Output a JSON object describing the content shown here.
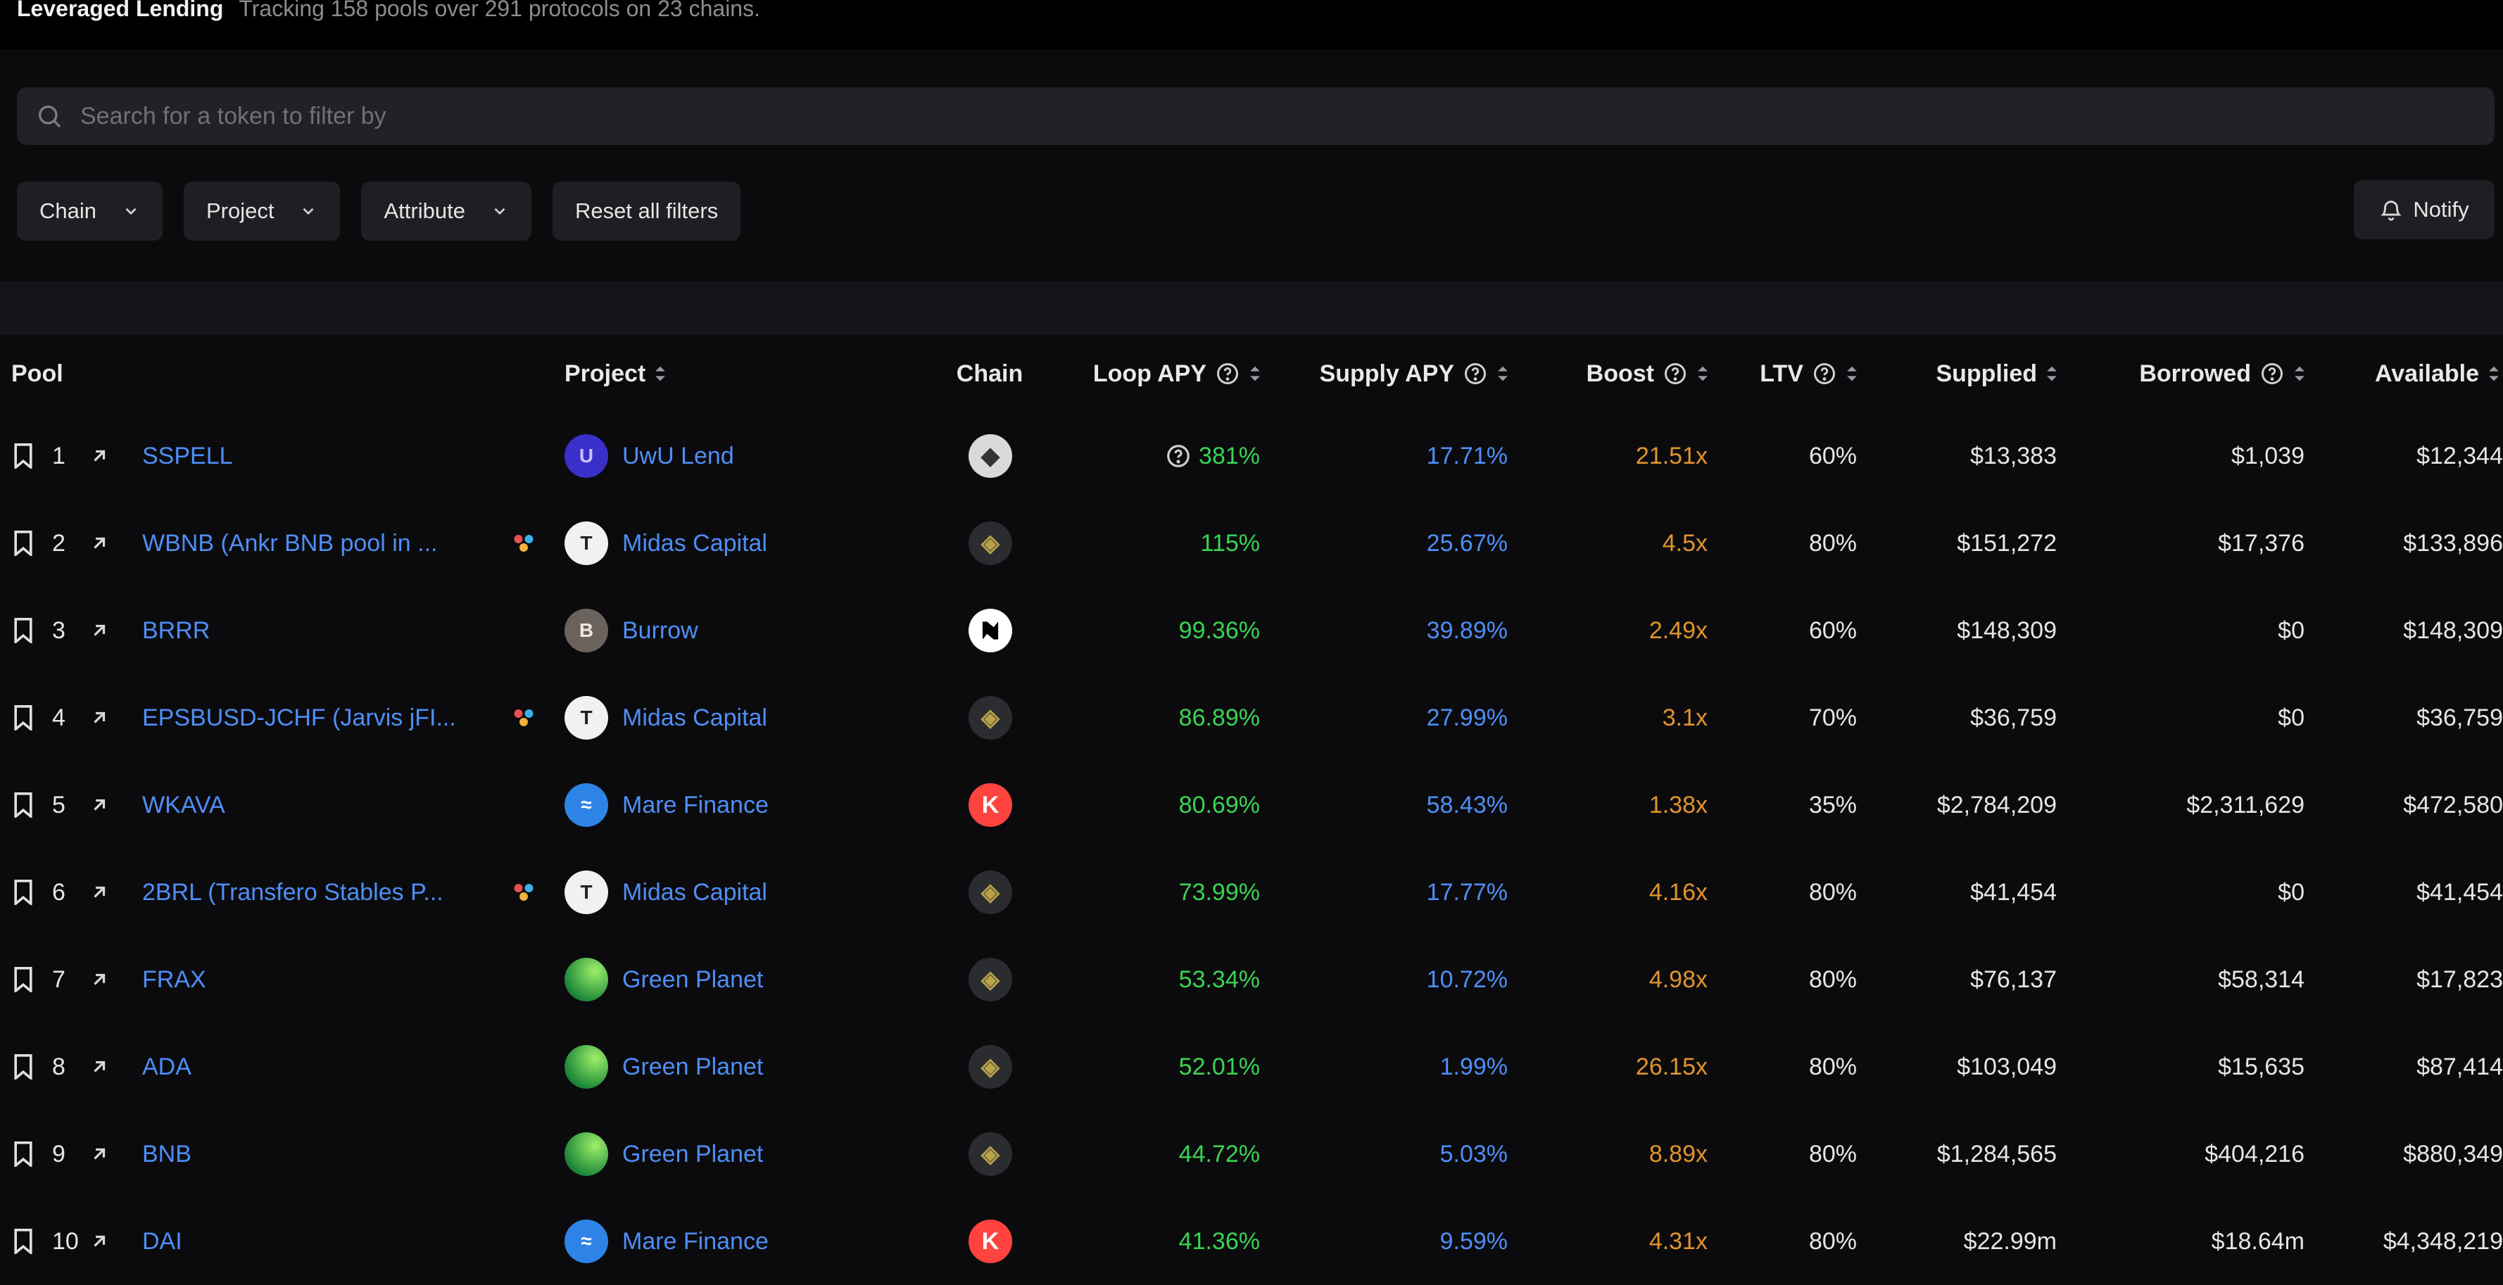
{
  "header": {
    "title": "Leveraged Lending",
    "subtitle": "Tracking 158 pools over 291 protocols on 23 chains."
  },
  "search": {
    "placeholder": "Search for a token to filter by"
  },
  "filters": {
    "chain": "Chain",
    "project": "Project",
    "attribute": "Attribute",
    "reset": "Reset all filters"
  },
  "notify": "Notify",
  "columns": {
    "pool": "Pool",
    "project": "Project",
    "chain": "Chain",
    "loop_apy": "Loop APY",
    "supply_apy": "Supply APY",
    "boost": "Boost",
    "ltv": "LTV",
    "supplied": "Supplied",
    "borrowed": "Borrowed",
    "available": "Available"
  },
  "colors": {
    "link": "#4f8ef7",
    "positive": "#39d353",
    "boost": "#e0942c"
  },
  "rows": [
    {
      "rank": "1",
      "pool": "SSPELL",
      "multi": false,
      "project": "UwU Lend",
      "project_icon": "uwu-lend-logo",
      "chain_icon": "ethereum-icon",
      "loop_apy": "381%",
      "loop_info": true,
      "supply_apy": "17.71%",
      "boost": "21.51x",
      "ltv": "60%",
      "supplied": "$13,383",
      "borrowed": "$1,039",
      "available": "$12,344"
    },
    {
      "rank": "2",
      "pool": "WBNB (Ankr BNB pool in ...",
      "multi": true,
      "project": "Midas Capital",
      "project_icon": "midas-capital-logo",
      "chain_icon": "bnb-chain-icon",
      "loop_apy": "115%",
      "loop_info": false,
      "supply_apy": "25.67%",
      "boost": "4.5x",
      "ltv": "80%",
      "supplied": "$151,272",
      "borrowed": "$17,376",
      "available": "$133,896"
    },
    {
      "rank": "3",
      "pool": "BRRR",
      "multi": false,
      "project": "Burrow",
      "project_icon": "burrow-logo",
      "chain_icon": "near-icon",
      "chain_letter": "N",
      "loop_apy": "99.36%",
      "loop_info": false,
      "supply_apy": "39.89%",
      "boost": "2.49x",
      "ltv": "60%",
      "supplied": "$148,309",
      "borrowed": "$0",
      "available": "$148,309"
    },
    {
      "rank": "4",
      "pool": "EPSBUSD-JCHF (Jarvis jFI...",
      "multi": true,
      "project": "Midas Capital",
      "project_icon": "midas-capital-logo",
      "chain_icon": "bnb-chain-icon",
      "loop_apy": "86.89%",
      "loop_info": false,
      "supply_apy": "27.99%",
      "boost": "3.1x",
      "ltv": "70%",
      "supplied": "$36,759",
      "borrowed": "$0",
      "available": "$36,759"
    },
    {
      "rank": "5",
      "pool": "WKAVA",
      "multi": false,
      "project": "Mare Finance",
      "project_icon": "mare-finance-logo",
      "chain_icon": "kava-icon",
      "chain_letter": "K",
      "loop_apy": "80.69%",
      "loop_info": false,
      "supply_apy": "58.43%",
      "boost": "1.38x",
      "ltv": "35%",
      "supplied": "$2,784,209",
      "borrowed": "$2,311,629",
      "available": "$472,580"
    },
    {
      "rank": "6",
      "pool": "2BRL (Transfero Stables P...",
      "multi": true,
      "project": "Midas Capital",
      "project_icon": "midas-capital-logo",
      "chain_icon": "bnb-chain-icon",
      "loop_apy": "73.99%",
      "loop_info": false,
      "supply_apy": "17.77%",
      "boost": "4.16x",
      "ltv": "80%",
      "supplied": "$41,454",
      "borrowed": "$0",
      "available": "$41,454"
    },
    {
      "rank": "7",
      "pool": "FRAX",
      "multi": false,
      "project": "Green Planet",
      "project_icon": "green-planet-logo",
      "chain_icon": "bnb-chain-icon",
      "loop_apy": "53.34%",
      "loop_info": false,
      "supply_apy": "10.72%",
      "boost": "4.98x",
      "ltv": "80%",
      "supplied": "$76,137",
      "borrowed": "$58,314",
      "available": "$17,823"
    },
    {
      "rank": "8",
      "pool": "ADA",
      "multi": false,
      "project": "Green Planet",
      "project_icon": "green-planet-logo",
      "chain_icon": "bnb-chain-icon",
      "loop_apy": "52.01%",
      "loop_info": false,
      "supply_apy": "1.99%",
      "boost": "26.15x",
      "ltv": "80%",
      "supplied": "$103,049",
      "borrowed": "$15,635",
      "available": "$87,414"
    },
    {
      "rank": "9",
      "pool": "BNB",
      "multi": false,
      "project": "Green Planet",
      "project_icon": "green-planet-logo",
      "chain_icon": "bnb-chain-icon",
      "loop_apy": "44.72%",
      "loop_info": false,
      "supply_apy": "5.03%",
      "boost": "8.89x",
      "ltv": "80%",
      "supplied": "$1,284,565",
      "borrowed": "$404,216",
      "available": "$880,349"
    },
    {
      "rank": "10",
      "pool": "DAI",
      "multi": false,
      "project": "Mare Finance",
      "project_icon": "mare-finance-logo",
      "chain_icon": "kava-icon",
      "chain_letter": "K",
      "loop_apy": "41.36%",
      "loop_info": false,
      "supply_apy": "9.59%",
      "boost": "4.31x",
      "ltv": "80%",
      "supplied": "$22.99m",
      "borrowed": "$18.64m",
      "available": "$4,348,219"
    }
  ]
}
